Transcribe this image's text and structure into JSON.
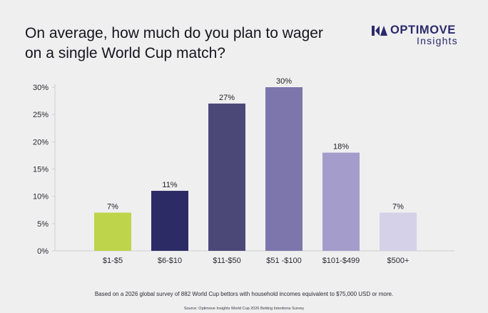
{
  "title": "On average, how much do you plan to wager on a single World Cup match?",
  "brand": {
    "name": "OPTIMOVE",
    "sub": "Insights",
    "color": "#2b2a6b"
  },
  "chart_data": {
    "type": "bar",
    "categories": [
      "$1-$5",
      "$6-$10",
      "$11-$50",
      "$51 -$100",
      "$101-$499",
      "$500+"
    ],
    "values": [
      7,
      11,
      27,
      30,
      18,
      7
    ],
    "data_labels": [
      "7%",
      "11%",
      "27%",
      "30%",
      "18%",
      "7%"
    ],
    "colors": [
      "#bed44a",
      "#2d2b65",
      "#4b4878",
      "#7d76ad",
      "#a49cca",
      "#d4d1e8"
    ],
    "yticks": [
      0,
      5,
      10,
      15,
      20,
      25,
      30
    ],
    "ytick_labels": [
      "0%",
      "5%",
      "10%",
      "15%",
      "20%",
      "25%",
      "30%"
    ],
    "ylim": [
      0,
      30
    ],
    "grid": false,
    "xlabel": "",
    "ylabel": ""
  },
  "footnote": "Based on a 2026 global survey of 882 World Cup bettors with household incomes equivalent to $75,000 USD or more.",
  "source": "Source: Optimove Insights World Cup 2026 Betting Intentions Survey"
}
